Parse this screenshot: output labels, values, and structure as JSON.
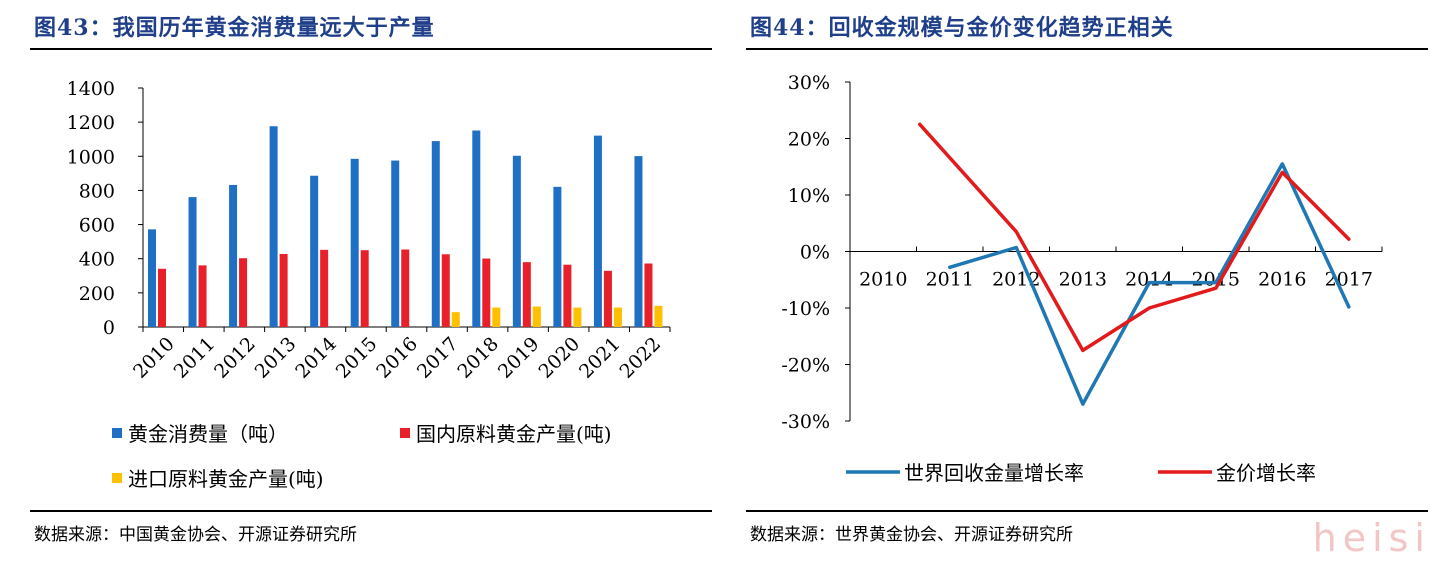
{
  "left": {
    "title": "图43：我国历年黄金消费量远大于产量",
    "source": "数据来源：中国黄金协会、开源证券研究所"
  },
  "right": {
    "title": "图44：回收金规模与金价变化趋势正相关",
    "source": "数据来源：世界黄金协会、开源证券研究所"
  },
  "watermark": "heisi",
  "colors": {
    "blue": "#1f6fc5",
    "red": "#e8202a",
    "yellow": "#ffc000",
    "line_blue": "#1f77b4",
    "line_red": "#e31a1c",
    "title": "#1f3f8a"
  },
  "chart_data": [
    {
      "type": "bar",
      "categories": [
        "2010",
        "2011",
        "2012",
        "2013",
        "2014",
        "2015",
        "2016",
        "2017",
        "2018",
        "2019",
        "2020",
        "2021",
        "2022"
      ],
      "series": [
        {
          "name": "黄金消费量（吨）",
          "color": "#1f6fc5",
          "values": [
            572,
            761,
            832,
            1176,
            886,
            985,
            975,
            1089,
            1151,
            1003,
            821,
            1121,
            1001
          ]
        },
        {
          "name": "国内原料黄金产量(吨)",
          "color": "#e8202a",
          "values": [
            341,
            361,
            403,
            428,
            452,
            450,
            454,
            426,
            401,
            380,
            365,
            329,
            372
          ]
        },
        {
          "name": "进口原料黄金产量(吨)",
          "color": "#ffc000",
          "values": [
            0,
            0,
            0,
            0,
            0,
            0,
            0,
            87,
            114,
            120,
            114,
            114,
            124
          ]
        }
      ],
      "ylim": [
        0,
        1400
      ],
      "yticks": [
        "0",
        "200",
        "400",
        "600",
        "800",
        "1000",
        "1200",
        "1400"
      ],
      "ytick_values": [
        0,
        200,
        400,
        600,
        800,
        1000,
        1200,
        1400
      ],
      "legend": "bottom"
    },
    {
      "type": "line",
      "categories": [
        "2010",
        "2011",
        "2012",
        "2013",
        "2014",
        "2015",
        "2016",
        "2017"
      ],
      "series": [
        {
          "name": "世界回收金量增长率",
          "color": "#1f77b4",
          "x": [
            1,
            2,
            3,
            4,
            5,
            6,
            7
          ],
          "values": [
            -2.8,
            0.7,
            -27.0,
            -5.5,
            -5.5,
            15.5,
            -9.8
          ]
        },
        {
          "name": "金价增长率",
          "color": "#e31a1c",
          "x": [
            0.55,
            2,
            3,
            4,
            5,
            6,
            7
          ],
          "values": [
            22.5,
            3.5,
            -17.5,
            -10.0,
            -6.5,
            14.0,
            2.2
          ]
        }
      ],
      "ylim": [
        -30,
        30
      ],
      "yticks": [
        "-30%",
        "-20%",
        "-10%",
        "0%",
        "10%",
        "20%",
        "30%"
      ],
      "ytick_values": [
        -30,
        -20,
        -10,
        0,
        10,
        20,
        30
      ],
      "legend": "bottom"
    }
  ]
}
